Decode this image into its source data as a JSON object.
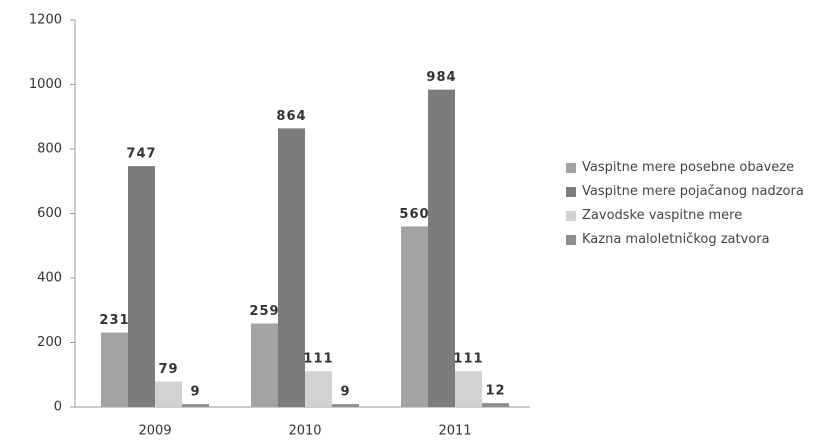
{
  "chart_data": {
    "type": "bar",
    "categories": [
      "2009",
      "2010",
      "2011"
    ],
    "series": [
      {
        "name": "Vaspitne mere posebne obaveze",
        "color": "#a3a3a3",
        "values": [
          231,
          259,
          560
        ]
      },
      {
        "name": "Vaspitne mere pojačanog nadzora",
        "color": "#7c7c7c",
        "values": [
          747,
          864,
          984
        ]
      },
      {
        "name": "Zavodske vaspitne mere",
        "color": "#d2d2d2",
        "values": [
          79,
          111,
          111
        ]
      },
      {
        "name": "Kazna maloletničkog zatvora",
        "color": "#8e8e8e",
        "values": [
          9,
          9,
          12
        ]
      }
    ],
    "ylim": [
      0,
      1200
    ],
    "yticks": [
      0,
      200,
      400,
      600,
      800,
      1000,
      1200
    ],
    "grid": false,
    "legend": "right"
  }
}
